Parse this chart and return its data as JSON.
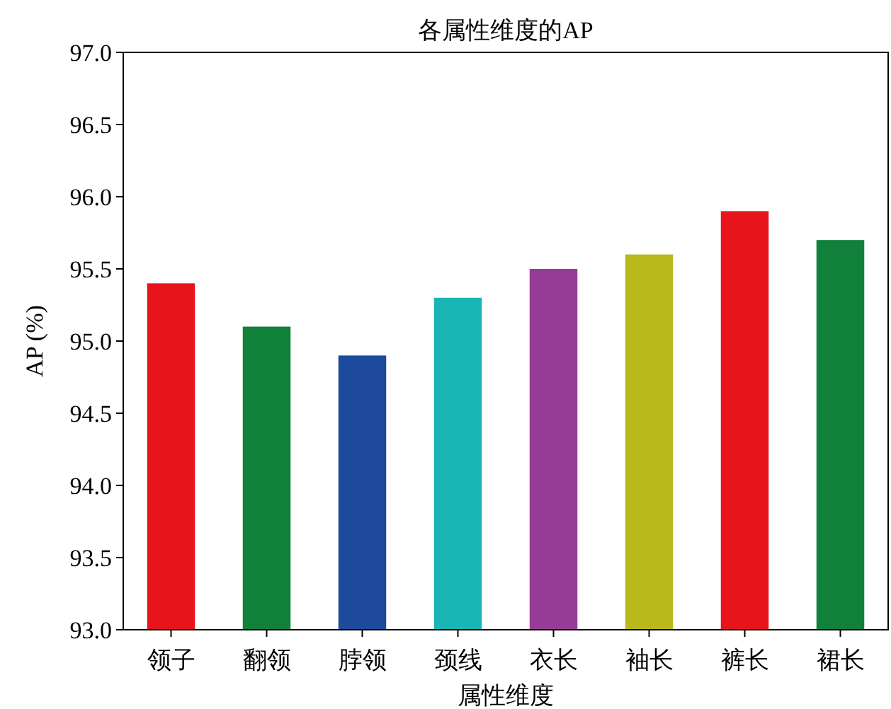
{
  "chart_data": {
    "type": "bar",
    "title": "各属性维度的AP",
    "xlabel": "属性维度",
    "ylabel": "AP (%)",
    "categories": [
      "领子",
      "翻领",
      "脖领",
      "颈线",
      "衣长",
      "袖长",
      "裤长",
      "裙长"
    ],
    "values": [
      95.4,
      95.1,
      94.9,
      95.3,
      95.5,
      95.6,
      95.9,
      95.7
    ],
    "colors": [
      "#e8141b",
      "#11803a",
      "#1e4a9e",
      "#1ab5b5",
      "#963c96",
      "#b9b81d",
      "#e8141b",
      "#11803a"
    ],
    "ylim": [
      93,
      97
    ],
    "yticks": [
      {
        "value": 93,
        "label": "93.0"
      },
      {
        "value": 93.5,
        "label": "93.5"
      },
      {
        "value": 94,
        "label": "94.0"
      },
      {
        "value": 94.5,
        "label": "94.5"
      },
      {
        "value": 95,
        "label": "95.0"
      },
      {
        "value": 95.5,
        "label": "95.5"
      },
      {
        "value": 96,
        "label": "96.0"
      },
      {
        "value": 96.5,
        "label": "96.5"
      },
      {
        "value": 97,
        "label": "97.0"
      }
    ]
  }
}
